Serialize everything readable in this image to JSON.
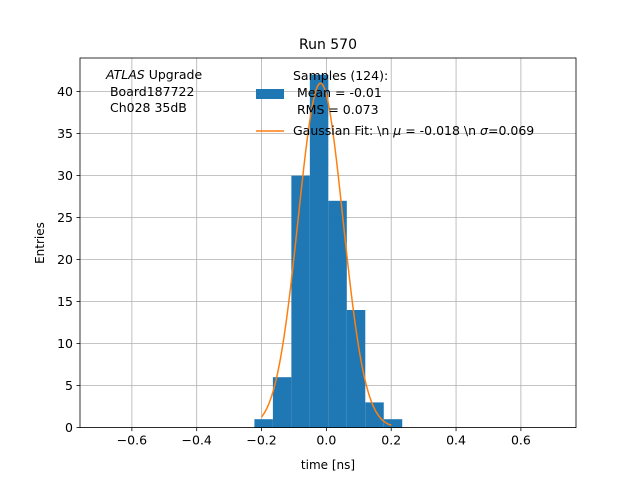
{
  "chart_data": {
    "type": "bar",
    "title": "Run 570",
    "xlabel": "time [ns]",
    "ylabel": "Entries",
    "xlim": [
      -0.76,
      0.77
    ],
    "ylim": [
      0,
      44
    ],
    "xticks": [
      -0.6,
      -0.4,
      -0.2,
      0.0,
      0.2,
      0.4,
      0.6
    ],
    "xtick_labels": [
      "−0.6",
      "−0.4",
      "−0.2",
      "0.0",
      "0.2",
      "0.4",
      "0.6"
    ],
    "yticks": [
      0,
      5,
      10,
      15,
      20,
      25,
      30,
      35,
      40
    ],
    "yticks_labels": [
      "0",
      "5",
      "10",
      "15",
      "20",
      "25",
      "30",
      "35",
      "40"
    ],
    "grid": true,
    "annotation": {
      "line1_italic": "ATLAS",
      "line1_rest": " Upgrade",
      "line2": " Board187722",
      "line3": " Ch028 35dB"
    },
    "histogram": {
      "bin_edges": [
        -0.222,
        -0.165,
        -0.108,
        -0.051,
        0.006,
        0.063,
        0.12,
        0.177,
        0.234
      ],
      "counts": [
        1,
        6,
        30,
        42,
        27,
        14,
        3,
        1
      ],
      "color": "#1f77b4",
      "legend_lines": [
        "Samples (124):",
        " Mean = -0.01",
        " RMS = 0.073"
      ]
    },
    "fit": {
      "mu": -0.018,
      "sigma": 0.069,
      "amplitude": 41.0,
      "x_range": [
        -0.2,
        0.2
      ],
      "color": "#ff7f0e",
      "legend_label": "Gaussian Fit: \\n μ = -0.018 \\n σ=0.069",
      "legend_parts": [
        "Gaussian Fit: \\n ",
        "μ",
        " = -0.018 \\n ",
        "σ",
        "=0.069"
      ]
    },
    "legend_position": "upper center"
  }
}
